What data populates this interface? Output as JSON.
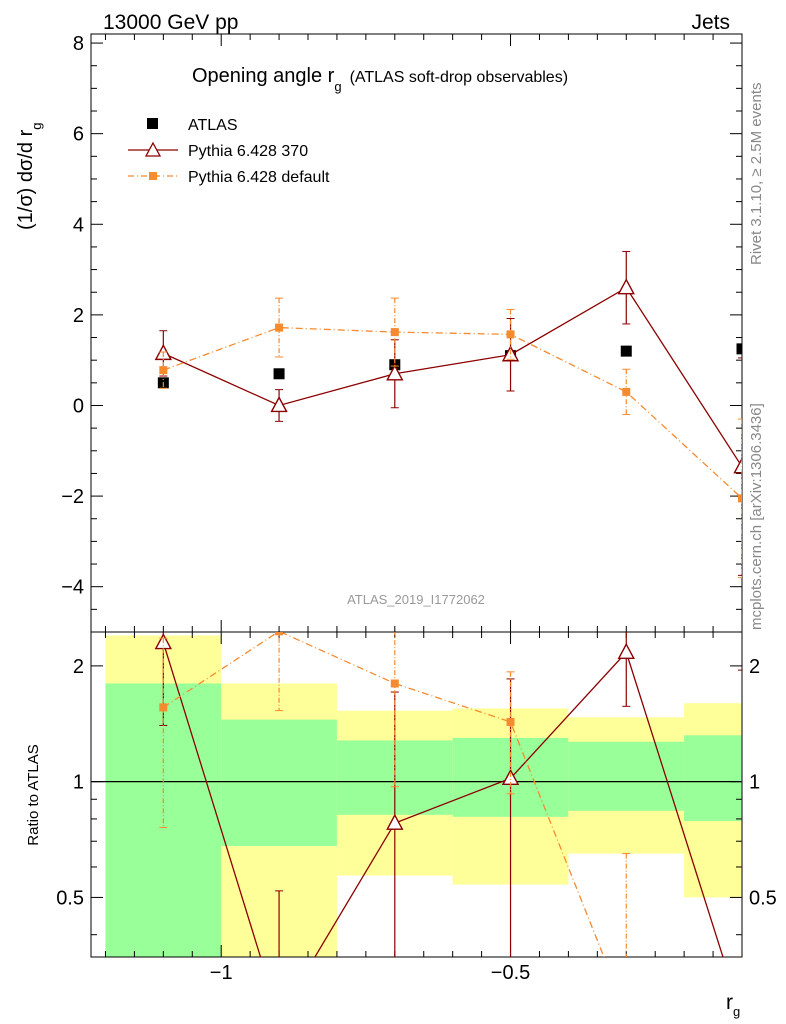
{
  "header": {
    "left": "13000 GeV pp",
    "right": "Jets"
  },
  "side_labels": {
    "rivet": "Rivet 3.1.10, ≥ 2.5M events",
    "mcplots": "mcplots.cern.ch [arXiv:1306.3436]"
  },
  "watermark": "ATLAS_2019_I1772062",
  "labels": {
    "title_main": "Opening angle r",
    "title_sub": "g",
    "title_paren": "(ATLAS soft-drop observables)",
    "ylabel_main": "(1/σ) dσ/d r",
    "ylabel_sub": "g",
    "ratio_ylabel": "Ratio to ATLAS",
    "xlabel_main": "r",
    "xlabel_sub": "g"
  },
  "legend": [
    {
      "key": "atlas",
      "label": "ATLAS"
    },
    {
      "key": "p370",
      "label": "Pythia 6.428 370"
    },
    {
      "key": "pdef",
      "label": "Pythia 6.428 default"
    }
  ],
  "colors": {
    "data": "#000000",
    "p370": "#8b0000",
    "pdef": "#f58a2e",
    "band_inner": "#99ff99",
    "band_outer": "#ffff99"
  },
  "chart_data": {
    "type": "scatter",
    "x_bins": [
      [
        -1.2,
        -1.0
      ],
      [
        -1.0,
        -0.8
      ],
      [
        -0.8,
        -0.6
      ],
      [
        -0.6,
        -0.4
      ],
      [
        -0.4,
        -0.2
      ],
      [
        -0.2,
        0.0
      ]
    ],
    "x_centers": [
      -1.1,
      -0.9,
      -0.7,
      -0.5,
      -0.3,
      -0.1
    ],
    "xlim": [
      -1.225,
      -0.1
    ],
    "x_ticks": [
      -1,
      -0.5
    ],
    "x_tick_labels": [
      "−1",
      "−0.5"
    ],
    "main": {
      "ylim": [
        -5.0,
        8.2
      ],
      "y_ticks": [
        -4,
        -2,
        0,
        2,
        4,
        6,
        8
      ],
      "y_tick_labels": [
        "−4",
        "−2",
        "0",
        "2",
        "4",
        "6",
        "8"
      ],
      "series": [
        {
          "key": "atlas",
          "name": "ATLAS",
          "values": [
            0.5,
            0.7,
            0.9,
            1.1,
            1.2,
            1.25
          ],
          "errors": [
            0.05,
            0.05,
            0.05,
            0.05,
            0.05,
            0.05
          ]
        },
        {
          "key": "p370",
          "name": "Pythia 6.428 370",
          "values": [
            1.15,
            0.0,
            0.7,
            1.12,
            2.6,
            -1.35
          ],
          "errors": [
            0.5,
            0.35,
            0.75,
            0.8,
            0.8,
            2.4
          ]
        },
        {
          "key": "pdef",
          "name": "Pythia 6.428 default",
          "values": [
            0.78,
            1.72,
            1.62,
            1.57,
            0.3,
            -2.05
          ],
          "errors": [
            0.4,
            0.65,
            0.75,
            0.55,
            0.5,
            1.75
          ]
        }
      ]
    },
    "ratio": {
      "ylim_log": [
        0.35,
        2.45
      ],
      "y_ticks": [
        0.5,
        1,
        2
      ],
      "y_tick_labels": [
        "0.5",
        "1",
        "2"
      ],
      "band_inner": [
        [
          0.3,
          1.8
        ],
        [
          0.68,
          1.45
        ],
        [
          0.82,
          1.28
        ],
        [
          0.81,
          1.3
        ],
        [
          0.84,
          1.27
        ],
        [
          0.79,
          1.32
        ]
      ],
      "band_outer": [
        [
          0.3,
          2.4
        ],
        [
          0.3,
          1.8
        ],
        [
          0.57,
          1.53
        ],
        [
          0.54,
          1.55
        ],
        [
          0.65,
          1.47
        ],
        [
          0.5,
          1.6
        ]
      ],
      "series": [
        {
          "key": "p370",
          "name": "Pythia 6.428 370",
          "values": [
            2.3,
            0.0,
            0.78,
            1.02,
            2.17,
            -1.08
          ],
          "err_lo": [
            0.9,
            0.0,
            0.78,
            1.02,
            0.6,
            0.0
          ],
          "err_hi": [
            0.9,
            0.52,
            0.93,
            0.83,
            0.6,
            1.95
          ]
        },
        {
          "key": "pdef",
          "name": "Pythia 6.428 default",
          "values": [
            1.56,
            2.46,
            1.8,
            1.43,
            0.25,
            -1.64
          ],
          "err_lo": [
            0.8,
            0.93,
            0.83,
            0.5,
            0.4,
            0.0
          ],
          "err_hi": [
            0.8,
            0.93,
            0.83,
            0.5,
            0.4,
            0.0
          ]
        }
      ]
    }
  }
}
